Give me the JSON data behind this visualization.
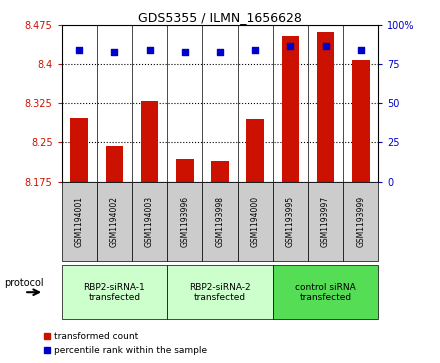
{
  "title": "GDS5355 / ILMN_1656628",
  "samples": [
    "GSM1194001",
    "GSM1194002",
    "GSM1194003",
    "GSM1193996",
    "GSM1193998",
    "GSM1194000",
    "GSM1193995",
    "GSM1193997",
    "GSM1193999"
  ],
  "bar_values": [
    8.297,
    8.243,
    8.33,
    8.218,
    8.215,
    8.295,
    8.455,
    8.462,
    8.408
  ],
  "percentile_values": [
    84,
    83,
    84,
    83,
    83,
    84,
    87,
    87,
    84
  ],
  "ylim_left": [
    8.175,
    8.475
  ],
  "ylim_right": [
    0,
    100
  ],
  "yticks_left": [
    8.175,
    8.25,
    8.325,
    8.4,
    8.475
  ],
  "yticks_right": [
    0,
    25,
    50,
    75,
    100
  ],
  "groups": [
    {
      "label": "RBP2-siRNA-1\ntransfected",
      "start": 0,
      "end": 3,
      "color": "#ccffcc"
    },
    {
      "label": "RBP2-siRNA-2\ntransfected",
      "start": 3,
      "end": 6,
      "color": "#ccffcc"
    },
    {
      "label": "control siRNA\ntransfected",
      "start": 6,
      "end": 9,
      "color": "#55dd55"
    }
  ],
  "bar_color": "#cc1100",
  "dot_color": "#0000cc",
  "cell_bg": "#cccccc",
  "plot_bg": "#ffffff",
  "left_tick_color": "#cc1100",
  "right_tick_color": "#0000cc",
  "bar_width": 0.5,
  "protocol_label": "protocol"
}
